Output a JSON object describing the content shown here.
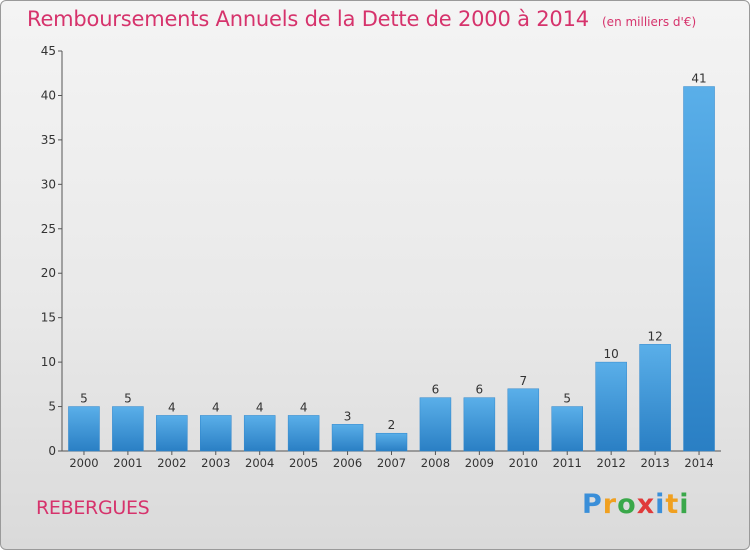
{
  "chart_data": {
    "type": "bar",
    "title": "Remboursements Annuels de la Dette de 2000 à 2014",
    "subtitle": "(en milliers d'€)",
    "categories": [
      "2000",
      "2001",
      "2002",
      "2003",
      "2004",
      "2005",
      "2006",
      "2007",
      "2008",
      "2009",
      "2010",
      "2011",
      "2012",
      "2013",
      "2014"
    ],
    "values": [
      5,
      5,
      4,
      4,
      4,
      4,
      3,
      2,
      6,
      6,
      7,
      5,
      10,
      12,
      41
    ],
    "ylim": [
      0,
      45
    ],
    "yticks": [
      0,
      5,
      10,
      15,
      20,
      25,
      30,
      35,
      40,
      45
    ],
    "grid": false,
    "bar_color": "#3a9ae0"
  },
  "footer": {
    "town": "REBERGUES",
    "logo": [
      "P",
      "r",
      "o",
      "x",
      "i",
      "t",
      "i"
    ],
    "logo_colors": [
      "#3a8fd9",
      "#f0a020",
      "#3aa84a",
      "#e03a3a",
      "#3a8fd9",
      "#f0a020",
      "#3aa84a"
    ]
  }
}
